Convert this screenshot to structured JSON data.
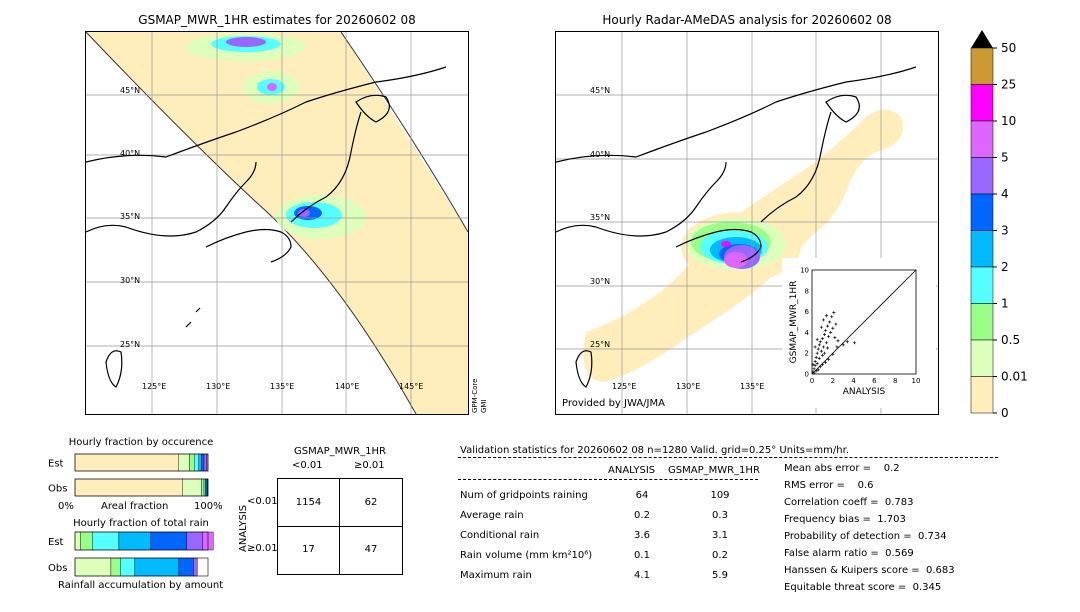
{
  "left_map": {
    "title": "GSMAP_MWR_1HR estimates for 20260602 08",
    "lat_labels": [
      "45°N",
      "40°N",
      "35°N",
      "30°N",
      "25°N"
    ],
    "lon_labels": [
      "125°E",
      "130°E",
      "135°E",
      "140°E",
      "145°E"
    ],
    "sensor_label_1": "GPM-Core",
    "sensor_label_2": "GMI"
  },
  "right_map": {
    "title": "Hourly Radar-AMeDAS analysis for 20260602 08",
    "lat_labels": [
      "45°N",
      "40°N",
      "35°N",
      "30°N",
      "25°N"
    ],
    "lon_labels": [
      "125°E",
      "130°E",
      "135°E"
    ],
    "credit": "Provided by JWA/JMA"
  },
  "colorbar": {
    "labels": [
      "50",
      "25",
      "10",
      "5",
      "4",
      "3",
      "2",
      "1",
      "0.5",
      "0.01",
      "0"
    ],
    "colors": [
      "#cc9933",
      "#ff00ff",
      "#dd66ff",
      "#9966ff",
      "#0066ff",
      "#00bbff",
      "#55ffff",
      "#99ff88",
      "#ddffbb",
      "#ffeebb"
    ]
  },
  "chart_data": [
    {
      "type": "scatter",
      "xlabel": "ANALYSIS",
      "ylabel": "GSMAP_MWR_1HR",
      "xlim": [
        0,
        10
      ],
      "ylim": [
        0,
        10
      ],
      "x_ticks": [
        "0",
        "2",
        "4",
        "6",
        "8",
        "10"
      ],
      "y_ticks": [
        "0",
        "2",
        "4",
        "6",
        "8",
        "10"
      ],
      "points": [
        [
          0.1,
          0.2
        ],
        [
          0.2,
          0.5
        ],
        [
          0.3,
          0.8
        ],
        [
          0.3,
          1.2
        ],
        [
          0.4,
          1.6
        ],
        [
          0.5,
          2.0
        ],
        [
          0.5,
          1.0
        ],
        [
          0.6,
          2.4
        ],
        [
          0.7,
          2.8
        ],
        [
          0.7,
          1.5
        ],
        [
          0.8,
          3.1
        ],
        [
          0.9,
          2.2
        ],
        [
          1.0,
          3.4
        ],
        [
          1.0,
          1.8
        ],
        [
          1.1,
          2.6
        ],
        [
          1.2,
          3.8
        ],
        [
          1.2,
          2.0
        ],
        [
          1.3,
          4.2
        ],
        [
          1.4,
          3.0
        ],
        [
          1.5,
          4.6
        ],
        [
          1.5,
          2.5
        ],
        [
          1.6,
          3.6
        ],
        [
          1.7,
          5.0
        ],
        [
          1.8,
          4.0
        ],
        [
          1.9,
          5.5
        ],
        [
          2.0,
          4.4
        ],
        [
          2.1,
          5.9
        ],
        [
          2.2,
          3.5
        ],
        [
          2.3,
          4.8
        ],
        [
          2.5,
          3.2
        ],
        [
          0.2,
          0.1
        ],
        [
          0.4,
          0.3
        ],
        [
          0.6,
          0.4
        ],
        [
          0.8,
          0.7
        ],
        [
          1.0,
          0.9
        ],
        [
          1.3,
          1.1
        ],
        [
          1.6,
          1.4
        ],
        [
          2.0,
          1.9
        ],
        [
          2.4,
          2.6
        ],
        [
          3.0,
          2.8
        ],
        [
          3.4,
          3.1
        ],
        [
          4.1,
          3.0
        ],
        [
          0.1,
          0.9
        ],
        [
          0.3,
          2.6
        ],
        [
          0.5,
          3.3
        ],
        [
          0.9,
          4.5
        ],
        [
          1.1,
          5.2
        ],
        [
          1.4,
          5.6
        ]
      ]
    },
    {
      "type": "bar",
      "title": "Hourly fraction by occurence",
      "categories": [
        "Est",
        "Obs"
      ],
      "xlabel": "Areal fraction",
      "x_ticks": [
        "0%",
        "100%"
      ],
      "series": [
        {
          "values": [
            0.78,
            0.81
          ]
        },
        {
          "values": [
            0.08,
            0.14
          ]
        },
        {
          "values": [
            0.04,
            0.02
          ]
        },
        {
          "values": [
            0.03,
            0.01
          ]
        },
        {
          "values": [
            0.02,
            0.01
          ]
        },
        {
          "values": [
            0.02,
            0.005
          ]
        },
        {
          "values": [
            0.02,
            0.005
          ]
        },
        {
          "values": [
            0.01,
            0.0
          ]
        }
      ]
    },
    {
      "type": "bar",
      "title": "Hourly fraction of total rain",
      "categories": [
        "Est",
        "Obs"
      ],
      "xlabel": "Rainfall accumulation by amount",
      "series": [
        {
          "values": [
            0.04,
            0.27
          ]
        },
        {
          "values": [
            0.09,
            0.07
          ]
        },
        {
          "values": [
            0.2,
            0.11
          ]
        },
        {
          "values": [
            0.24,
            0.33
          ]
        },
        {
          "values": [
            0.27,
            0.11
          ]
        },
        {
          "values": [
            0.12,
            0.03
          ]
        },
        {
          "values": [
            0.08,
            0.0
          ]
        }
      ]
    },
    {
      "type": "table",
      "title": "GSMAP_MWR_1HR",
      "col_headers": [
        "<0.01",
        "≥0.01"
      ],
      "row_axis_label": "ANALYSIS",
      "row_headers": [
        "<0.01",
        "≥0.01"
      ],
      "cells": [
        [
          "1154",
          "62"
        ],
        [
          "17",
          "47"
        ]
      ]
    }
  ],
  "stats": {
    "header": "Validation statistics for 20260602 08  n=1280 Valid. grid=0.25° Units=mm/hr.",
    "col_analysis": "ANALYSIS",
    "col_gsmap": "GSMAP_MWR_1HR",
    "rows": [
      {
        "label": "Num of gridpoints raining",
        "analysis": "64",
        "gsmap": "109"
      },
      {
        "label": "Average rain",
        "analysis": "0.2",
        "gsmap": "0.3"
      },
      {
        "label": "Conditional rain",
        "analysis": "3.6",
        "gsmap": "3.1"
      },
      {
        "label": "Rain volume (mm km²10⁶)",
        "analysis": "0.1",
        "gsmap": "0.2"
      },
      {
        "label": "Maximum rain",
        "analysis": "4.1",
        "gsmap": "5.9"
      }
    ],
    "scores": [
      "Mean abs error =    0.2",
      "RMS error =    0.6",
      "Correlation coeff =  0.783",
      "Frequency bias =  1.703",
      "Probability of detection =  0.734",
      "False alarm ratio =  0.569",
      "Hanssen & Kuipers score =  0.683",
      "Equitable threat score =  0.345"
    ]
  }
}
